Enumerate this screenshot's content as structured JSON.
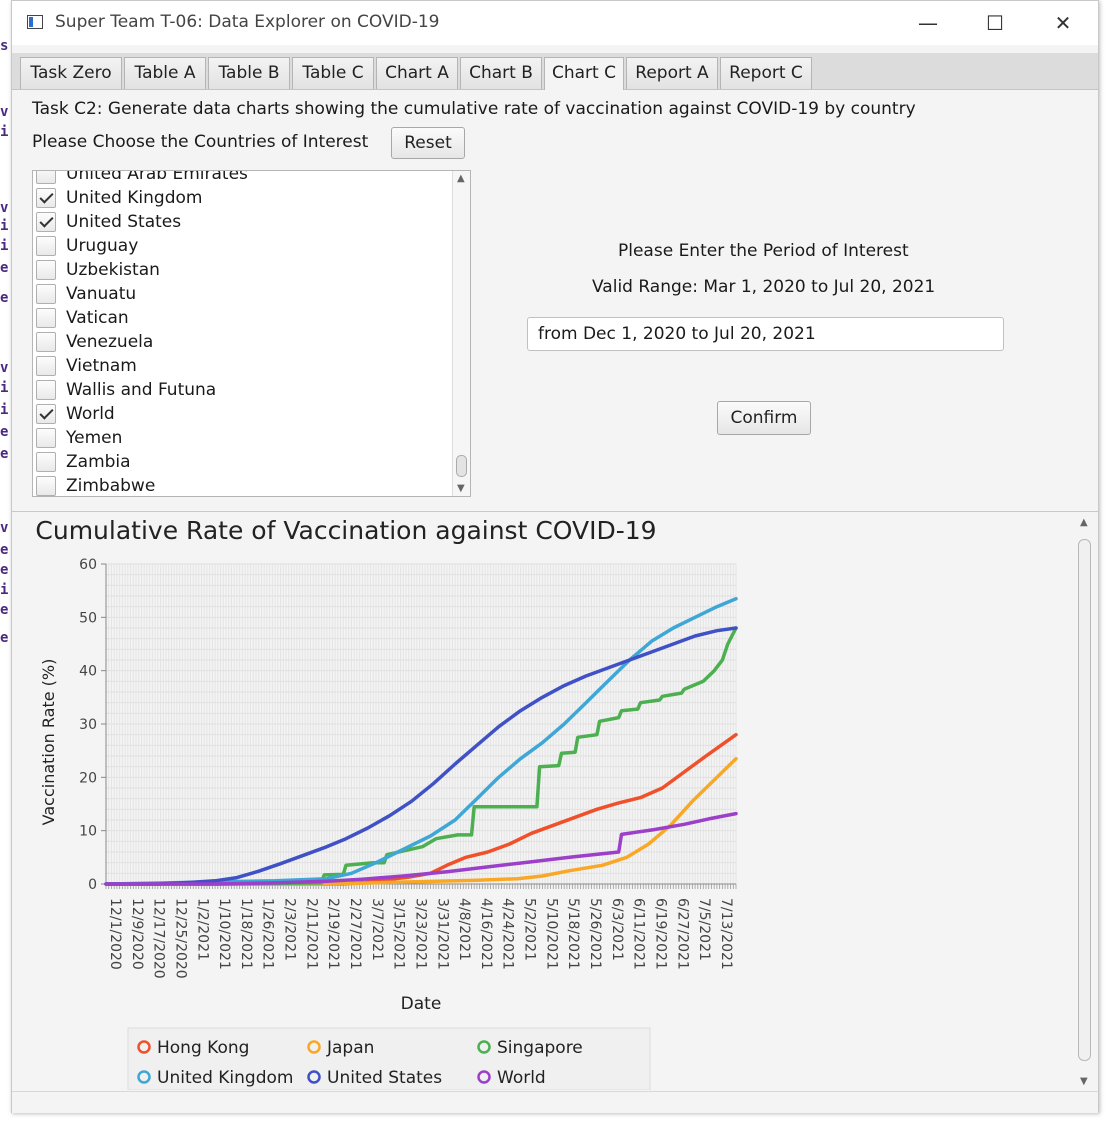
{
  "window": {
    "title": "Super Team T-06: Data Explorer on COVID-19",
    "minimize_glyph": "—",
    "maximize_glyph": "☐",
    "close_glyph": "✕"
  },
  "code_gutter": [
    "s",
    "v",
    "i",
    "v",
    "i",
    "i",
    "e",
    "e",
    "v",
    "i",
    "i",
    "e",
    "e",
    "v",
    "e",
    "e",
    "i",
    "e",
    "e"
  ],
  "tabs": [
    "Task Zero",
    "Table A",
    "Table B",
    "Table C",
    "Chart A",
    "Chart B",
    "Chart C",
    "Report A",
    "Report C"
  ],
  "active_tab": "Chart C",
  "task": {
    "description": "Task C2: Generate data charts showing the cumulative rate of vaccination against COVID-19 by country",
    "choose_label": "Please Choose the Countries of Interest",
    "reset_label": "Reset"
  },
  "countries": [
    {
      "name": "United Arab Emirates",
      "checked": false
    },
    {
      "name": "United Kingdom",
      "checked": true
    },
    {
      "name": "United States",
      "checked": true
    },
    {
      "name": "Uruguay",
      "checked": false
    },
    {
      "name": "Uzbekistan",
      "checked": false
    },
    {
      "name": "Vanuatu",
      "checked": false
    },
    {
      "name": "Vatican",
      "checked": false
    },
    {
      "name": "Venezuela",
      "checked": false
    },
    {
      "name": "Vietnam",
      "checked": false
    },
    {
      "name": "Wallis and Futuna",
      "checked": false
    },
    {
      "name": "World",
      "checked": true
    },
    {
      "name": "Yemen",
      "checked": false
    },
    {
      "name": "Zambia",
      "checked": false
    },
    {
      "name": "Zimbabwe",
      "checked": false
    }
  ],
  "period": {
    "label": "Please Enter the Period of Interest",
    "valid_range": "Valid Range: Mar 1, 2020 to Jul 20, 2021",
    "input_value": "from Dec 1, 2020 to Jul 20, 2021",
    "confirm_label": "Confirm"
  },
  "chart_data": {
    "type": "line",
    "title": "Cumulative Rate of Vaccination against COVID-19",
    "xlabel": "Date",
    "ylabel": "Vaccination Rate (%)",
    "ylim": [
      0,
      60
    ],
    "yticks": [
      0,
      10,
      20,
      30,
      40,
      50,
      60
    ],
    "x_range": [
      "12/1/2020",
      "7/20/2021"
    ],
    "x_tick_labels": [
      "12/1/2020",
      "12/9/2020",
      "12/17/2020",
      "12/25/2020",
      "1/2/2021",
      "1/10/2021",
      "1/18/2021",
      "1/26/2021",
      "2/3/2021",
      "2/11/2021",
      "2/19/2021",
      "2/27/2021",
      "3/7/2021",
      "3/15/2021",
      "3/23/2021",
      "3/31/2021",
      "4/8/2021",
      "4/16/2021",
      "4/24/2021",
      "5/2/2021",
      "5/10/2021",
      "5/18/2021",
      "5/26/2021",
      "6/3/2021",
      "6/11/2021",
      "6/19/2021",
      "6/27/2021",
      "7/5/2021",
      "7/13/2021"
    ],
    "grid": true,
    "legend_position": "bottom",
    "series": [
      {
        "name": "Hong Kong",
        "color": "#f0502a",
        "points": [
          [
            "12/1/2020",
            0
          ],
          [
            "2/26/2021",
            0
          ],
          [
            "3/6/2021",
            0.3
          ],
          [
            "3/14/2021",
            0.8
          ],
          [
            "3/22/2021",
            1.3
          ],
          [
            "3/30/2021",
            2
          ],
          [
            "4/5/2021",
            3.5
          ],
          [
            "4/12/2021",
            5
          ],
          [
            "4/20/2021",
            6
          ],
          [
            "4/28/2021",
            7.5
          ],
          [
            "5/6/2021",
            9.5
          ],
          [
            "5/14/2021",
            11
          ],
          [
            "5/22/2021",
            12.5
          ],
          [
            "5/30/2021",
            14
          ],
          [
            "6/7/2021",
            15.2
          ],
          [
            "6/15/2021",
            16.2
          ],
          [
            "6/23/2021",
            18
          ],
          [
            "7/1/2021",
            21
          ],
          [
            "7/9/2021",
            24
          ],
          [
            "7/20/2021",
            28
          ]
        ]
      },
      {
        "name": "Japan",
        "color": "#f9a825",
        "points": [
          [
            "12/1/2020",
            0
          ],
          [
            "2/17/2021",
            0
          ],
          [
            "3/1/2021",
            0.1
          ],
          [
            "3/15/2021",
            0.3
          ],
          [
            "4/1/2021",
            0.5
          ],
          [
            "4/16/2021",
            0.7
          ],
          [
            "5/1/2021",
            1
          ],
          [
            "5/10/2021",
            1.5
          ],
          [
            "5/20/2021",
            2.5
          ],
          [
            "6/1/2021",
            3.5
          ],
          [
            "6/10/2021",
            5
          ],
          [
            "6/18/2021",
            7.5
          ],
          [
            "6/26/2021",
            11
          ],
          [
            "7/4/2021",
            15.5
          ],
          [
            "7/12/2021",
            19.5
          ],
          [
            "7/20/2021",
            23.5
          ]
        ]
      },
      {
        "name": "Singapore",
        "color": "#4caf50",
        "points": [
          [
            "12/1/2020",
            0
          ],
          [
            "1/10/2021",
            0
          ],
          [
            "2/18/2021",
            0.2
          ],
          [
            "2/19/2021",
            1.7
          ],
          [
            "2/26/2021",
            1.8
          ],
          [
            "2/27/2021",
            3.5
          ],
          [
            "3/9/2021",
            4
          ],
          [
            "3/13/2021",
            4
          ],
          [
            "3/14/2021",
            5.5
          ],
          [
            "3/27/2021",
            7
          ],
          [
            "4/1/2021",
            8.5
          ],
          [
            "4/9/2021",
            9.2
          ],
          [
            "4/14/2021",
            9.2
          ],
          [
            "4/15/2021",
            14.5
          ],
          [
            "5/8/2021",
            14.5
          ],
          [
            "5/9/2021",
            22
          ],
          [
            "5/16/2021",
            22.2
          ],
          [
            "5/17/2021",
            24.5
          ],
          [
            "5/22/2021",
            24.7
          ],
          [
            "5/23/2021",
            27.5
          ],
          [
            "5/30/2021",
            28
          ],
          [
            "5/31/2021",
            30.5
          ],
          [
            "6/7/2021",
            31.2
          ],
          [
            "6/8/2021",
            32.5
          ],
          [
            "6/14/2021",
            32.8
          ],
          [
            "6/15/2021",
            34
          ],
          [
            "6/22/2021",
            34.5
          ],
          [
            "6/23/2021",
            35.2
          ],
          [
            "6/30/2021",
            35.8
          ],
          [
            "7/1/2021",
            36.5
          ],
          [
            "7/8/2021",
            38
          ],
          [
            "7/12/2021",
            40
          ],
          [
            "7/15/2021",
            42
          ],
          [
            "7/17/2021",
            45
          ],
          [
            "7/20/2021",
            48
          ]
        ]
      },
      {
        "name": "United Kingdom",
        "color": "#3fa7d6",
        "points": [
          [
            "12/1/2020",
            0
          ],
          [
            "1/10/2021",
            0.4
          ],
          [
            "2/1/2021",
            0.6
          ],
          [
            "2/20/2021",
            1
          ],
          [
            "3/1/2021",
            2
          ],
          [
            "3/10/2021",
            4
          ],
          [
            "3/20/2021",
            6.5
          ],
          [
            "3/30/2021",
            9
          ],
          [
            "4/8/2021",
            12
          ],
          [
            "4/16/2021",
            16
          ],
          [
            "4/24/2021",
            20
          ],
          [
            "5/2/2021",
            23.5
          ],
          [
            "5/10/2021",
            26.5
          ],
          [
            "5/18/2021",
            30
          ],
          [
            "5/26/2021",
            34
          ],
          [
            "6/3/2021",
            38
          ],
          [
            "6/11/2021",
            42
          ],
          [
            "6/19/2021",
            45.5
          ],
          [
            "6/27/2021",
            48
          ],
          [
            "7/5/2021",
            50
          ],
          [
            "7/13/2021",
            52
          ],
          [
            "7/20/2021",
            53.5
          ]
        ]
      },
      {
        "name": "United States",
        "color": "#3f51c5",
        "points": [
          [
            "12/1/2020",
            0
          ],
          [
            "12/20/2020",
            0
          ],
          [
            "1/1/2021",
            0.3
          ],
          [
            "1/10/2021",
            0.6
          ],
          [
            "1/18/2021",
            1.2
          ],
          [
            "1/26/2021",
            2.4
          ],
          [
            "2/3/2021",
            3.8
          ],
          [
            "2/11/2021",
            5.3
          ],
          [
            "2/19/2021",
            6.8
          ],
          [
            "2/27/2021",
            8.5
          ],
          [
            "3/7/2021",
            10.5
          ],
          [
            "3/15/2021",
            12.8
          ],
          [
            "3/23/2021",
            15.5
          ],
          [
            "3/31/2021",
            18.8
          ],
          [
            "4/8/2021",
            22.5
          ],
          [
            "4/16/2021",
            26
          ],
          [
            "4/24/2021",
            29.5
          ],
          [
            "5/2/2021",
            32.5
          ],
          [
            "5/10/2021",
            35
          ],
          [
            "5/18/2021",
            37.2
          ],
          [
            "5/26/2021",
            39
          ],
          [
            "6/3/2021",
            40.5
          ],
          [
            "6/11/2021",
            42
          ],
          [
            "6/19/2021",
            43.5
          ],
          [
            "6/27/2021",
            45
          ],
          [
            "7/5/2021",
            46.5
          ],
          [
            "7/13/2021",
            47.5
          ],
          [
            "7/20/2021",
            48
          ]
        ]
      },
      {
        "name": "World",
        "color": "#9c3fc9",
        "points": [
          [
            "12/1/2020",
            0
          ],
          [
            "1/10/2021",
            0
          ],
          [
            "2/1/2021",
            0.2
          ],
          [
            "2/20/2021",
            0.5
          ],
          [
            "3/5/2021",
            0.9
          ],
          [
            "3/20/2021",
            1.5
          ],
          [
            "4/5/2021",
            2.3
          ],
          [
            "4/20/2021",
            3.2
          ],
          [
            "5/5/2021",
            4.1
          ],
          [
            "5/20/2021",
            5
          ],
          [
            "6/7/2021",
            6
          ],
          [
            "6/8/2021",
            9.3
          ],
          [
            "6/20/2021",
            10.2
          ],
          [
            "7/1/2021",
            11.2
          ],
          [
            "7/10/2021",
            12.2
          ],
          [
            "7/20/2021",
            13.2
          ]
        ]
      }
    ]
  }
}
